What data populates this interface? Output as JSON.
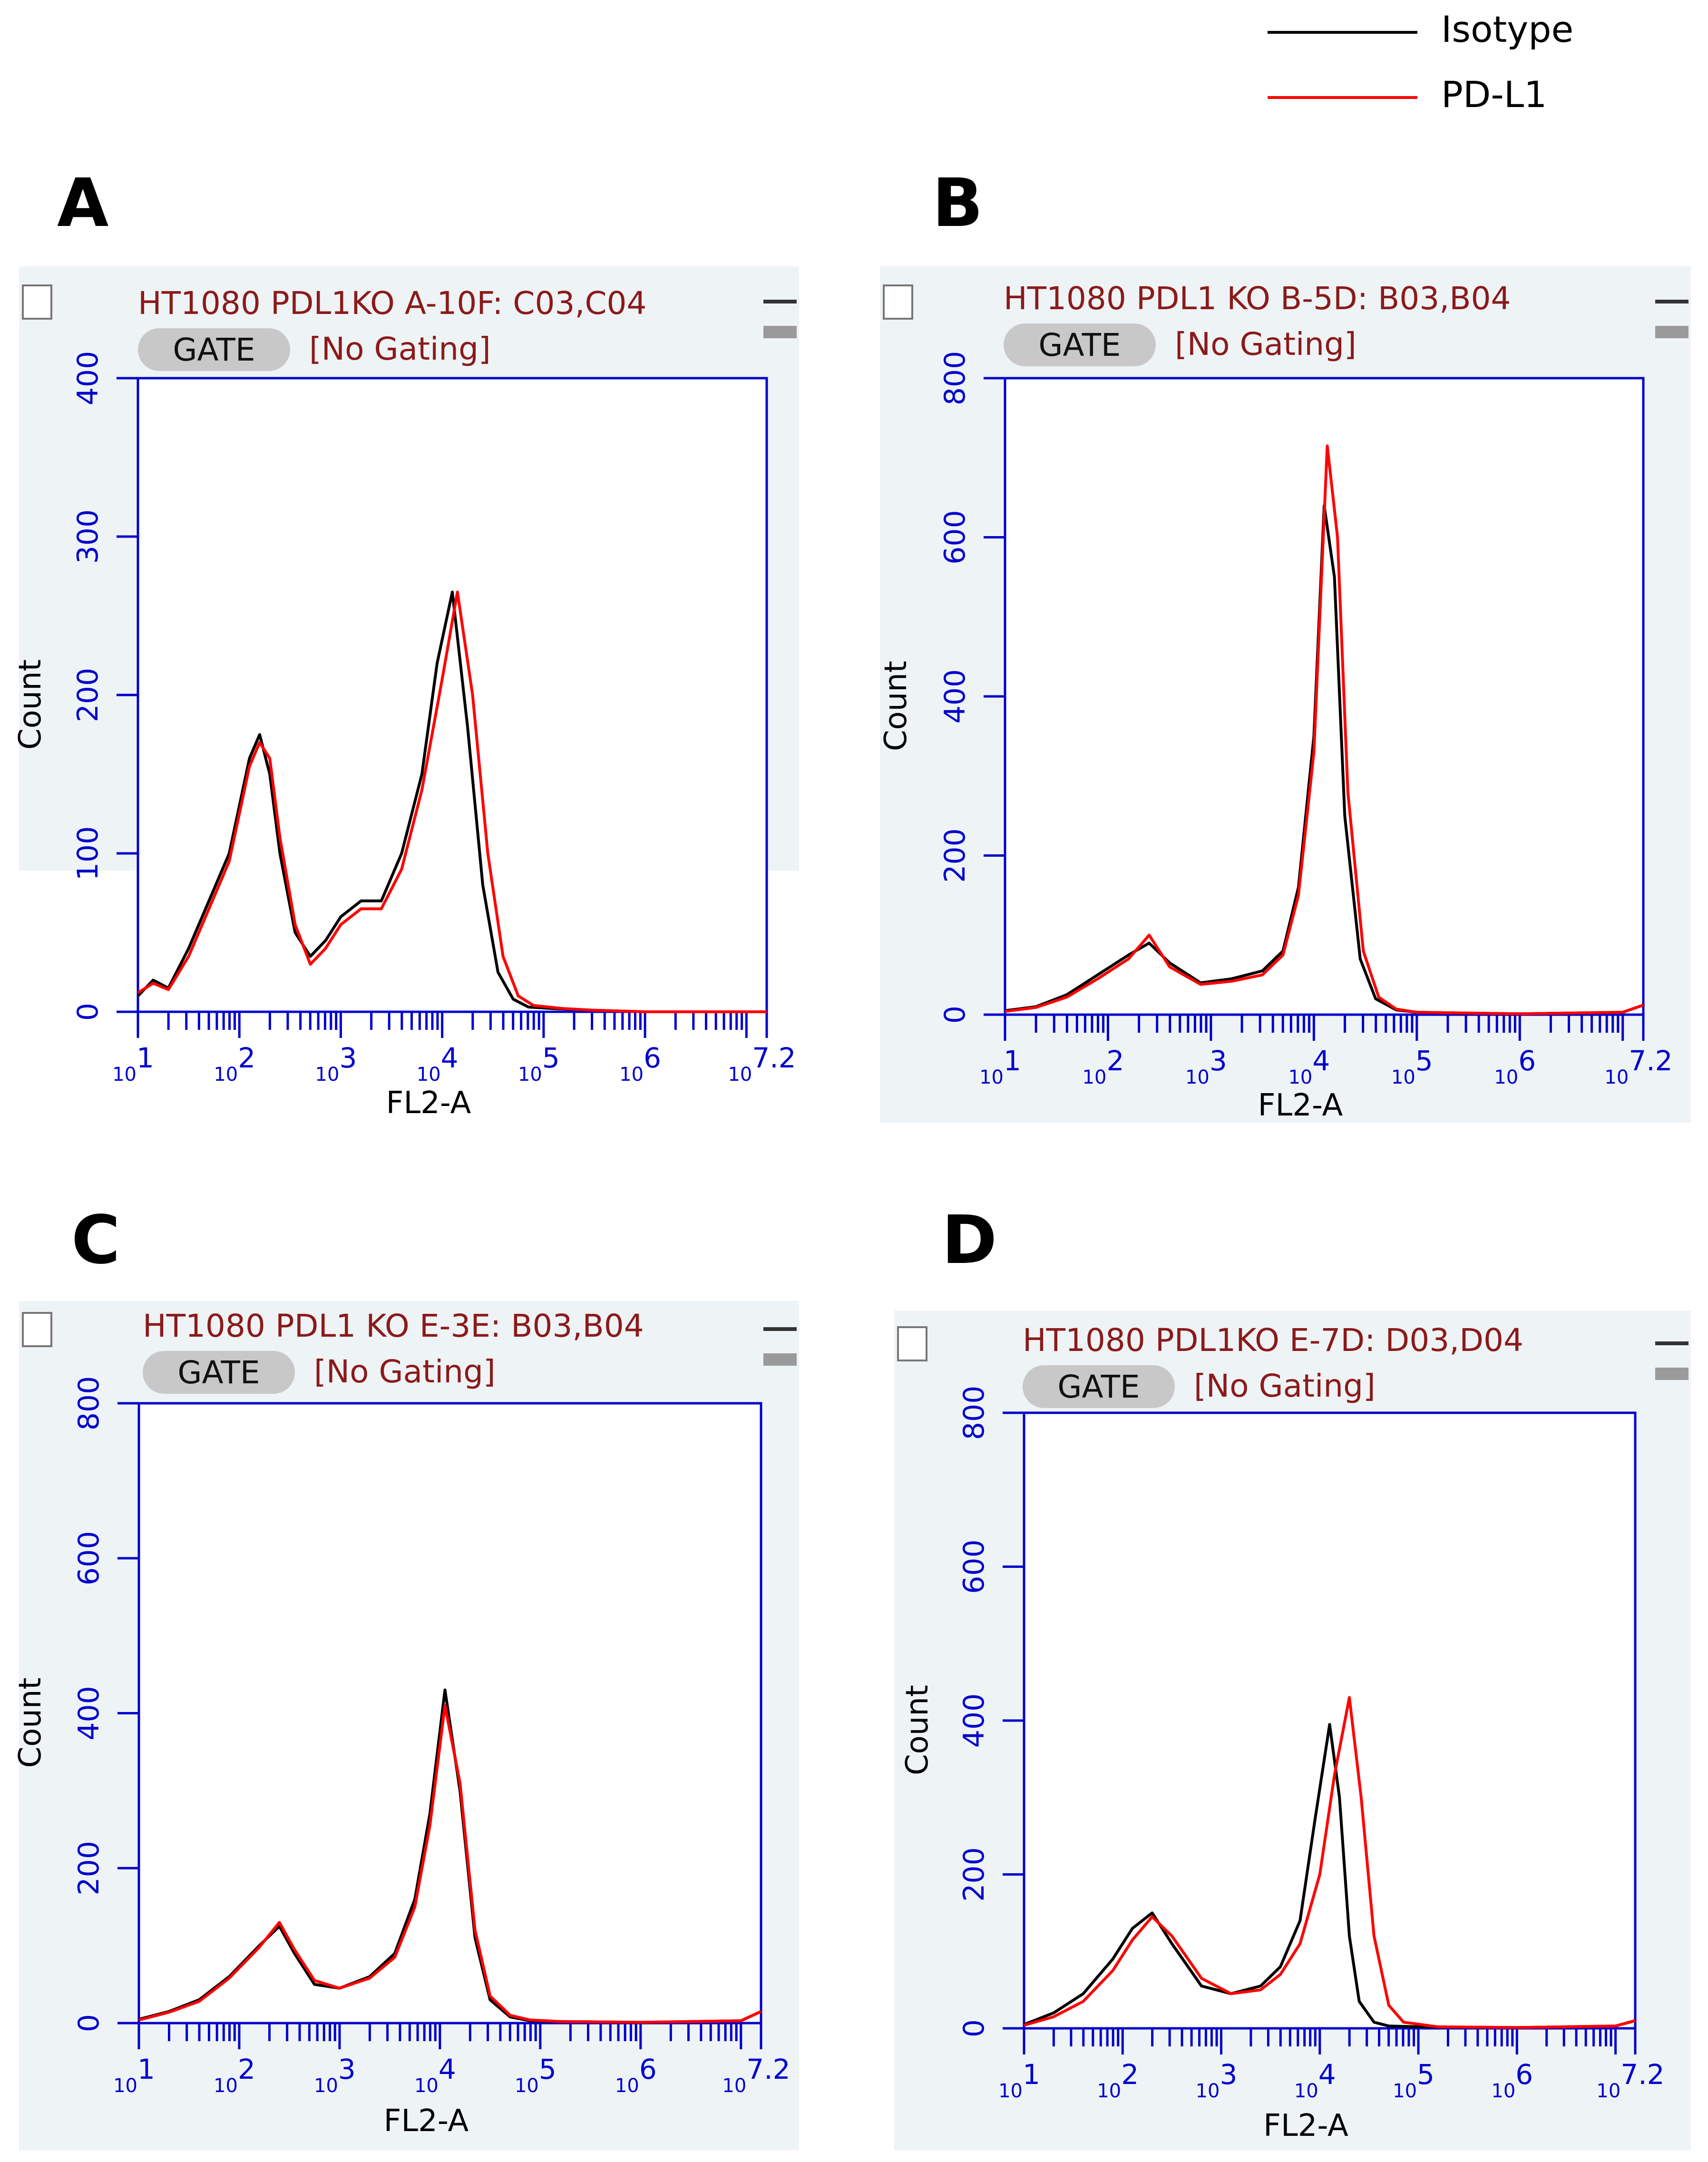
{
  "legend": {
    "entries": [
      {
        "label": "Isotype",
        "color": "#000000"
      },
      {
        "label": "PD-L1",
        "color": "#ff0000"
      }
    ]
  },
  "colors": {
    "panel_bg": "#eef3f5",
    "axis": "#0000cc",
    "label_text": "#8b1a1a",
    "gate_badge": "#c8c8c8",
    "isotype": "#000000",
    "pdl1": "#ff0000"
  },
  "chart_data": [
    {
      "type": "line",
      "panel_label": "A",
      "title": "HT1080 PDL1KO A-10F: C03,C04",
      "gate_button": "GATE",
      "gating": "[No Gating]",
      "xlabel": "FL2-A",
      "ylabel": "Count",
      "x_scale": "log10",
      "xlim": [
        1,
        7.2
      ],
      "ylim": [
        0,
        400
      ],
      "yticks": [
        0,
        100,
        200,
        300,
        400
      ],
      "xtick_labels": [
        {
          "base": "10",
          "exp": "1"
        },
        {
          "base": "10",
          "exp": "2"
        },
        {
          "base": "10",
          "exp": "3"
        },
        {
          "base": "10",
          "exp": "4"
        },
        {
          "base": "10",
          "exp": "5"
        },
        {
          "base": "10",
          "exp": "6"
        },
        {
          "base": "10",
          "exp": "7.2"
        }
      ],
      "legend": [
        "Isotype",
        "PD-L1"
      ],
      "series": [
        {
          "name": "Isotype",
          "color": "#000000",
          "x": [
            1.0,
            1.15,
            1.3,
            1.5,
            1.7,
            1.9,
            2.1,
            2.2,
            2.3,
            2.4,
            2.55,
            2.7,
            2.85,
            3.0,
            3.2,
            3.4,
            3.6,
            3.8,
            3.95,
            4.1,
            4.25,
            4.4,
            4.55,
            4.7,
            4.85,
            5.1,
            5.5,
            6.0,
            7.2
          ],
          "y": [
            10,
            20,
            15,
            40,
            70,
            100,
            160,
            175,
            150,
            100,
            50,
            35,
            45,
            60,
            70,
            70,
            100,
            150,
            220,
            265,
            180,
            80,
            25,
            8,
            3,
            2,
            1,
            0,
            0
          ]
        },
        {
          "name": "PD-L1",
          "color": "#ff0000",
          "x": [
            1.0,
            1.15,
            1.3,
            1.5,
            1.7,
            1.9,
            2.1,
            2.2,
            2.3,
            2.4,
            2.55,
            2.7,
            2.85,
            3.0,
            3.2,
            3.4,
            3.6,
            3.8,
            4.0,
            4.15,
            4.3,
            4.45,
            4.6,
            4.75,
            4.9,
            5.2,
            5.5,
            6.0,
            7.2
          ],
          "y": [
            12,
            18,
            14,
            35,
            65,
            95,
            155,
            170,
            160,
            110,
            55,
            30,
            40,
            55,
            65,
            65,
            90,
            140,
            210,
            265,
            200,
            100,
            35,
            10,
            4,
            2,
            1,
            0,
            0
          ]
        }
      ]
    },
    {
      "type": "line",
      "panel_label": "B",
      "title": "HT1080 PDL1 KO B-5D: B03,B04",
      "gate_button": "GATE",
      "gating": "[No Gating]",
      "xlabel": "FL2-A",
      "ylabel": "Count",
      "x_scale": "log10",
      "xlim": [
        1,
        7.2
      ],
      "ylim": [
        0,
        800
      ],
      "yticks": [
        0,
        200,
        400,
        600,
        800
      ],
      "xtick_labels": [
        {
          "base": "10",
          "exp": "1"
        },
        {
          "base": "10",
          "exp": "2"
        },
        {
          "base": "10",
          "exp": "3"
        },
        {
          "base": "10",
          "exp": "4"
        },
        {
          "base": "10",
          "exp": "5"
        },
        {
          "base": "10",
          "exp": "6"
        },
        {
          "base": "10",
          "exp": "7.2"
        }
      ],
      "legend": [
        "Isotype",
        "PD-L1"
      ],
      "series": [
        {
          "name": "Isotype",
          "color": "#000000",
          "x": [
            1.0,
            1.3,
            1.6,
            1.9,
            2.2,
            2.4,
            2.6,
            2.9,
            3.2,
            3.5,
            3.7,
            3.85,
            4.0,
            4.1,
            4.2,
            4.3,
            4.45,
            4.6,
            4.8,
            5.0,
            5.5,
            6.0,
            7.0,
            7.2
          ],
          "y": [
            5,
            10,
            25,
            50,
            75,
            90,
            65,
            40,
            45,
            55,
            80,
            160,
            350,
            640,
            550,
            250,
            70,
            20,
            6,
            3,
            2,
            1,
            3,
            12
          ]
        },
        {
          "name": "PD-L1",
          "color": "#ff0000",
          "x": [
            1.0,
            1.3,
            1.6,
            1.9,
            2.2,
            2.4,
            2.6,
            2.9,
            3.2,
            3.5,
            3.7,
            3.85,
            4.0,
            4.13,
            4.23,
            4.33,
            4.48,
            4.63,
            4.8,
            5.0,
            5.5,
            6.0,
            7.0,
            7.2
          ],
          "y": [
            4,
            9,
            22,
            45,
            70,
            100,
            60,
            38,
            42,
            50,
            75,
            150,
            330,
            715,
            600,
            280,
            80,
            22,
            7,
            3,
            2,
            1,
            3,
            12
          ]
        }
      ]
    },
    {
      "type": "line",
      "panel_label": "C",
      "title": "HT1080 PDL1 KO E-3E: B03,B04",
      "gate_button": "GATE",
      "gating": "[No Gating]",
      "xlabel": "FL2-A",
      "ylabel": "Count",
      "x_scale": "log10",
      "xlim": [
        1,
        7.2
      ],
      "ylim": [
        0,
        800
      ],
      "yticks": [
        0,
        200,
        400,
        600,
        800
      ],
      "xtick_labels": [
        {
          "base": "10",
          "exp": "1"
        },
        {
          "base": "10",
          "exp": "2"
        },
        {
          "base": "10",
          "exp": "3"
        },
        {
          "base": "10",
          "exp": "4"
        },
        {
          "base": "10",
          "exp": "5"
        },
        {
          "base": "10",
          "exp": "6"
        },
        {
          "base": "10",
          "exp": "7.2"
        }
      ],
      "legend": [
        "Isotype",
        "PD-L1"
      ],
      "series": [
        {
          "name": "Isotype",
          "color": "#000000",
          "x": [
            1.0,
            1.3,
            1.6,
            1.9,
            2.2,
            2.4,
            2.55,
            2.75,
            3.0,
            3.3,
            3.55,
            3.75,
            3.9,
            4.05,
            4.2,
            4.35,
            4.5,
            4.7,
            4.9,
            5.2,
            6.0,
            7.0,
            7.2
          ],
          "y": [
            5,
            15,
            30,
            60,
            100,
            125,
            90,
            50,
            45,
            60,
            90,
            160,
            270,
            430,
            300,
            110,
            30,
            8,
            3,
            2,
            1,
            3,
            15
          ]
        },
        {
          "name": "PD-L1",
          "color": "#ff0000",
          "x": [
            1.0,
            1.3,
            1.6,
            1.9,
            2.2,
            2.4,
            2.55,
            2.75,
            3.0,
            3.3,
            3.55,
            3.75,
            3.9,
            4.05,
            4.2,
            4.35,
            4.5,
            4.7,
            4.9,
            5.2,
            6.0,
            7.0,
            7.2
          ],
          "y": [
            4,
            14,
            28,
            58,
            98,
            130,
            95,
            55,
            45,
            58,
            85,
            150,
            255,
            410,
            310,
            120,
            35,
            10,
            4,
            2,
            1,
            3,
            15
          ]
        }
      ]
    },
    {
      "type": "line",
      "panel_label": "D",
      "title": "HT1080 PDL1KO E-7D: D03,D04",
      "gate_button": "GATE",
      "gating": "[No Gating]",
      "xlabel": "FL2-A",
      "ylabel": "Count",
      "x_scale": "log10",
      "xlim": [
        1,
        7.2
      ],
      "ylim": [
        0,
        800
      ],
      "yticks": [
        0,
        200,
        400,
        600,
        800
      ],
      "xtick_labels": [
        {
          "base": "10",
          "exp": "1"
        },
        {
          "base": "10",
          "exp": "2"
        },
        {
          "base": "10",
          "exp": "3"
        },
        {
          "base": "10",
          "exp": "4"
        },
        {
          "base": "10",
          "exp": "5"
        },
        {
          "base": "10",
          "exp": "6"
        },
        {
          "base": "10",
          "exp": "7.2"
        }
      ],
      "legend": [
        "Isotype",
        "PD-L1"
      ],
      "series": [
        {
          "name": "Isotype",
          "color": "#000000",
          "x": [
            1.0,
            1.3,
            1.6,
            1.9,
            2.1,
            2.3,
            2.5,
            2.8,
            3.1,
            3.4,
            3.6,
            3.8,
            3.95,
            4.1,
            4.2,
            4.3,
            4.4,
            4.55,
            4.7,
            5.0,
            6.0,
            7.0,
            7.2
          ],
          "y": [
            5,
            20,
            45,
            90,
            130,
            150,
            110,
            55,
            45,
            55,
            80,
            140,
            270,
            395,
            300,
            120,
            35,
            8,
            3,
            2,
            1,
            3,
            10
          ]
        },
        {
          "name": "PD-L1",
          "color": "#ff0000",
          "x": [
            1.0,
            1.3,
            1.6,
            1.9,
            2.1,
            2.3,
            2.5,
            2.8,
            3.1,
            3.4,
            3.6,
            3.8,
            4.0,
            4.15,
            4.3,
            4.42,
            4.55,
            4.7,
            4.85,
            5.2,
            6.0,
            7.0,
            7.2
          ],
          "y": [
            4,
            15,
            35,
            75,
            115,
            145,
            120,
            65,
            45,
            50,
            70,
            110,
            200,
            330,
            430,
            300,
            120,
            30,
            8,
            2,
            1,
            3,
            10
          ]
        }
      ]
    }
  ]
}
